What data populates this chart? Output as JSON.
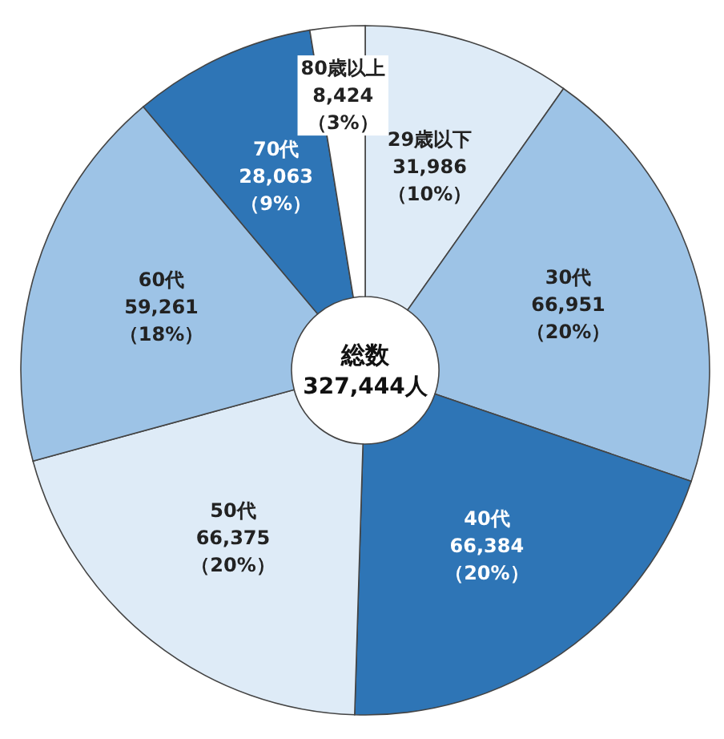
{
  "chart_data": {
    "type": "donut",
    "categories": [
      "29歳以下",
      "30代",
      "40代",
      "50代",
      "60代",
      "70代",
      "80歳以上"
    ],
    "values": [
      31986,
      66951,
      66384,
      66375,
      59261,
      28063,
      8424
    ],
    "colors": [
      "#deebf7",
      "#9dc3e6",
      "#2e75b6",
      "#deebf7",
      "#9dc3e6",
      "#2e75b6",
      "#ffffff"
    ],
    "value_labels": [
      "31,986\n（10%）",
      "66,951\n（20%）",
      "66,384\n（20%）",
      "66,375\n（20%）",
      "59,261\n（18%）",
      "28,063\n（9%）",
      "8,424\n（3%）"
    ],
    "annotations": [
      "総数",
      "327,444人"
    ],
    "legend": false
  }
}
